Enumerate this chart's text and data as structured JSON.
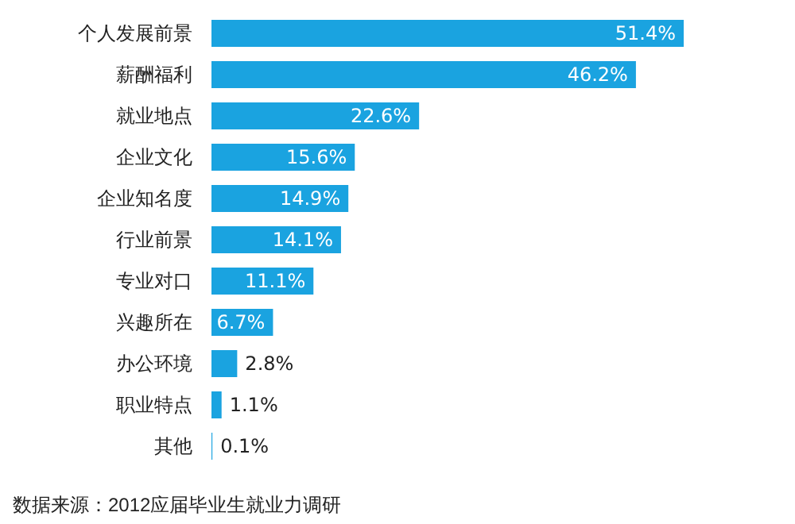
{
  "chart_data": {
    "type": "bar",
    "orientation": "horizontal",
    "categories": [
      "个人发展前景",
      "薪酬福利",
      "就业地点",
      "企业文化",
      "企业知名度",
      "行业前景",
      "专业对口",
      "兴趣所在",
      "办公环境",
      "职业特点",
      "其他"
    ],
    "values": [
      51.4,
      46.2,
      22.6,
      15.6,
      14.9,
      14.1,
      11.1,
      6.7,
      2.8,
      1.1,
      0.1
    ],
    "value_labels": [
      "51.4%",
      "46.2%",
      "22.6%",
      "15.6%",
      "14.9%",
      "14.1%",
      "11.1%",
      "6.7%",
      "2.8%",
      "1.1%",
      "0.1%"
    ],
    "color": "#1aa3e0",
    "annotations": [
      "数据来源：2012应届毕业生就业力调研"
    ]
  }
}
